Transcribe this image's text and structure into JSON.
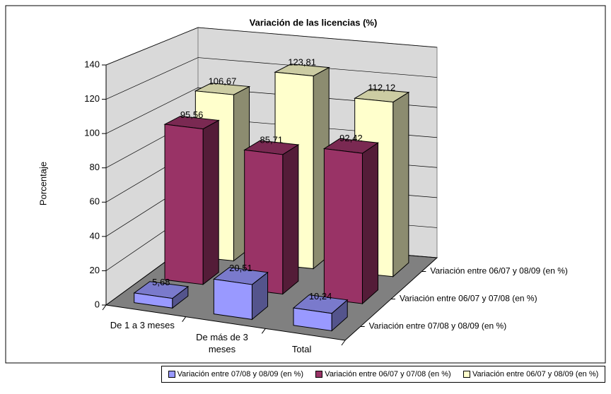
{
  "chart_data": {
    "type": "bar3d",
    "title": "Variación de las licencias (%)",
    "y_label": "Porcentaje",
    "categories": [
      "De 1 a 3 meses",
      "De más de 3 meses",
      "Total"
    ],
    "series": [
      {
        "name": "Variación entre 07/08 y 08/09 (en %)",
        "color": "#9999ff",
        "values": [
          5.68,
          20.51,
          10.24
        ],
        "value_labels": [
          "5,68",
          "20,51",
          "10,24"
        ]
      },
      {
        "name": "Variación entre 06/07 y 07/08 (en %)",
        "color": "#993366",
        "values": [
          95.56,
          85.71,
          92.42
        ],
        "value_labels": [
          "95,56",
          "85,71",
          "92,42"
        ]
      },
      {
        "name": "Variación entre 06/07 y 08/09 (en %)",
        "color": "#ffffcc",
        "values": [
          106.67,
          123.81,
          112.12
        ],
        "value_labels": [
          "106,67",
          "123,81",
          "112,12"
        ]
      }
    ],
    "ylim": [
      0,
      140
    ],
    "yticks": [
      0,
      20,
      40,
      60,
      80,
      100,
      120,
      140
    ],
    "grid": true
  }
}
